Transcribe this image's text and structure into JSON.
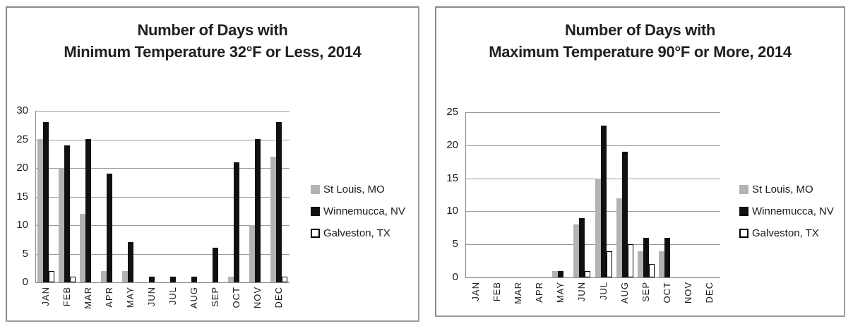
{
  "chart_data": [
    {
      "type": "bar",
      "title_lines": [
        "Number of Days with",
        "Minimum Temperature 32°F or Less, 2014"
      ],
      "categories": [
        "JAN",
        "FEB",
        "MAR",
        "APR",
        "MAY",
        "JUN",
        "JUL",
        "AUG",
        "SEP",
        "OCT",
        "NOV",
        "DEC"
      ],
      "series": [
        {
          "name": "St Louis, MO",
          "color": "#b3b3b3",
          "outline": "",
          "values": [
            25,
            20,
            12,
            2,
            2,
            0,
            0,
            0,
            0,
            1,
            10,
            22
          ]
        },
        {
          "name": "Winnemucca, NV",
          "color": "#111111",
          "outline": "",
          "values": [
            28,
            24,
            25,
            19,
            7,
            1,
            1,
            1,
            6,
            21,
            25,
            28
          ]
        },
        {
          "name": "Galveston, TX",
          "color": "#ffffff",
          "outline": "#000000",
          "values": [
            2,
            1,
            0,
            0,
            0,
            0,
            0,
            0,
            0,
            0,
            0,
            1
          ]
        }
      ],
      "ylim": [
        0,
        30
      ],
      "y_ticks": [
        0,
        5,
        10,
        15,
        20,
        25,
        30
      ],
      "grid": true,
      "legend_position": "right",
      "xlabel": "",
      "ylabel": ""
    },
    {
      "type": "bar",
      "title_lines": [
        "Number of Days with",
        "Maximum Temperature 90°F or More, 2014"
      ],
      "categories": [
        "JAN",
        "FEB",
        "MAR",
        "APR",
        "MAY",
        "JUN",
        "JUL",
        "AUG",
        "SEP",
        "OCT",
        "NOV",
        "DEC"
      ],
      "series": [
        {
          "name": "St Louis, MO",
          "color": "#b3b3b3",
          "outline": "",
          "values": [
            0,
            0,
            0,
            0,
            1,
            8,
            15,
            12,
            4,
            4,
            0,
            0
          ]
        },
        {
          "name": "Winnemucca, NV",
          "color": "#111111",
          "outline": "",
          "values": [
            0,
            0,
            0,
            0,
            1,
            9,
            23,
            19,
            6,
            6,
            0,
            0
          ]
        },
        {
          "name": "Galveston, TX",
          "color": "#ffffff",
          "outline": "#000000",
          "values": [
            0,
            0,
            0,
            0,
            0,
            1,
            4,
            5,
            2,
            0,
            0,
            0
          ]
        }
      ],
      "ylim": [
        0,
        25
      ],
      "y_ticks": [
        0,
        5,
        10,
        15,
        20,
        25
      ],
      "grid": true,
      "legend_position": "right",
      "xlabel": "",
      "ylabel": ""
    }
  ],
  "colors": {
    "bar_gray": "#b3b3b3",
    "bar_black": "#111111",
    "bar_white": "#ffffff",
    "gridline": "#999999",
    "panel_border": "#9c9c9c",
    "text": "#1a1a1a"
  }
}
